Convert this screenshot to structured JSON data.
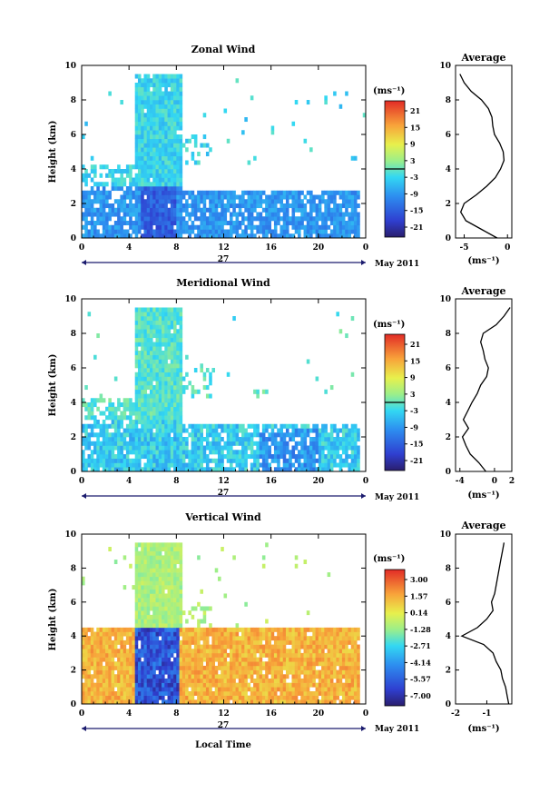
{
  "figure": {
    "xlabel": "Local Time",
    "date_label": "May 2011",
    "day_label": "27",
    "profile_title": "Average",
    "units": "(ms⁻¹)"
  },
  "chart_data": [
    {
      "type": "heatmap",
      "title": "Zonal Wind",
      "ylabel": "Height (km)",
      "xlabel": "",
      "x_ticks": [
        "0",
        "4",
        "8",
        "12",
        "16",
        "20",
        "0"
      ],
      "x_range": [
        0,
        24
      ],
      "y_ticks": [
        "0",
        "2",
        "4",
        "6",
        "8",
        "10"
      ],
      "y_range": [
        0,
        10
      ],
      "colorbar": {
        "label": "(ms⁻¹)",
        "ticks": [
          "21",
          "15",
          "9",
          "3",
          "-3",
          "-9",
          "-15",
          "-21"
        ],
        "range": [
          -24,
          24
        ],
        "zero_line": 0
      },
      "profile": {
        "title": "Average",
        "xlabel": "(ms⁻¹)",
        "x_ticks": [
          "-5",
          "0"
        ],
        "x_range": [
          -6,
          0.5
        ],
        "heights": [
          0,
          0.5,
          1,
          1.5,
          2,
          2.5,
          3,
          3.5,
          4,
          4.5,
          5,
          5.5,
          6,
          6.5,
          7,
          7.5,
          8,
          8.5,
          9,
          9.5
        ],
        "values": [
          -1.2,
          -3.0,
          -4.8,
          -5.4,
          -5.0,
          -3.6,
          -2.4,
          -1.4,
          -0.8,
          -0.4,
          -0.5,
          -0.9,
          -1.5,
          -1.7,
          -1.8,
          -2.2,
          -3.0,
          -4.2,
          -5.0,
          -5.5
        ]
      }
    },
    {
      "type": "heatmap",
      "title": "Meridional Wind",
      "ylabel": "Height (km)",
      "xlabel": "",
      "x_ticks": [
        "0",
        "4",
        "8",
        "12",
        "16",
        "20",
        "0"
      ],
      "x_range": [
        0,
        24
      ],
      "y_ticks": [
        "0",
        "2",
        "4",
        "6",
        "8",
        "10"
      ],
      "y_range": [
        0,
        10
      ],
      "colorbar": {
        "label": "(ms⁻¹)",
        "ticks": [
          "21",
          "15",
          "9",
          "3",
          "-3",
          "-9",
          "-15",
          "-21"
        ],
        "range": [
          -24,
          24
        ],
        "zero_line": 0
      },
      "profile": {
        "title": "Average",
        "xlabel": "(ms⁻¹)",
        "x_ticks": [
          "-4",
          "0",
          "2"
        ],
        "x_range": [
          -4.5,
          2
        ],
        "heights": [
          0,
          0.5,
          1,
          1.5,
          2,
          2.5,
          3,
          3.5,
          4,
          4.5,
          5,
          5.5,
          6,
          6.5,
          7,
          7.5,
          8,
          8.5,
          9,
          9.5
        ],
        "values": [
          -1.0,
          -1.8,
          -2.8,
          -3.3,
          -3.7,
          -3.0,
          -3.6,
          -3.1,
          -2.6,
          -2.0,
          -1.6,
          -0.9,
          -0.7,
          -1.1,
          -1.3,
          -1.6,
          -1.3,
          0.2,
          1.1,
          1.8
        ]
      }
    },
    {
      "type": "heatmap",
      "title": "Vertical Wind",
      "ylabel": "Height (km)",
      "xlabel": "Local Time",
      "x_ticks": [
        "0",
        "4",
        "8",
        "12",
        "16",
        "20",
        "0"
      ],
      "x_range": [
        0,
        24
      ],
      "y_ticks": [
        "0",
        "2",
        "4",
        "6",
        "8",
        "10"
      ],
      "y_range": [
        0,
        10
      ],
      "colorbar": {
        "label": "(ms⁻¹)",
        "ticks": [
          "3.00",
          "1.57",
          "0.14",
          "-1.28",
          "-2.71",
          "-4.14",
          "-5.57",
          "-7.00"
        ],
        "range": [
          -7.7,
          3.7
        ]
      },
      "profile": {
        "title": "Average",
        "xlabel": "(ms⁻¹)",
        "x_ticks": [
          "-2",
          "-1"
        ],
        "x_range": [
          -2,
          -0.2
        ],
        "heights": [
          0,
          0.5,
          1,
          1.5,
          2,
          2.5,
          3,
          3.5,
          4,
          4.5,
          5,
          5.5,
          6,
          6.5,
          7,
          7.5,
          8,
          8.5,
          9,
          9.5
        ],
        "values": [
          -0.3,
          -0.35,
          -0.4,
          -0.5,
          -0.55,
          -0.7,
          -0.8,
          -1.1,
          -1.8,
          -1.3,
          -1.0,
          -0.8,
          -0.85,
          -0.75,
          -0.7,
          -0.65,
          -0.6,
          -0.55,
          -0.5,
          -0.45
        ]
      }
    }
  ]
}
